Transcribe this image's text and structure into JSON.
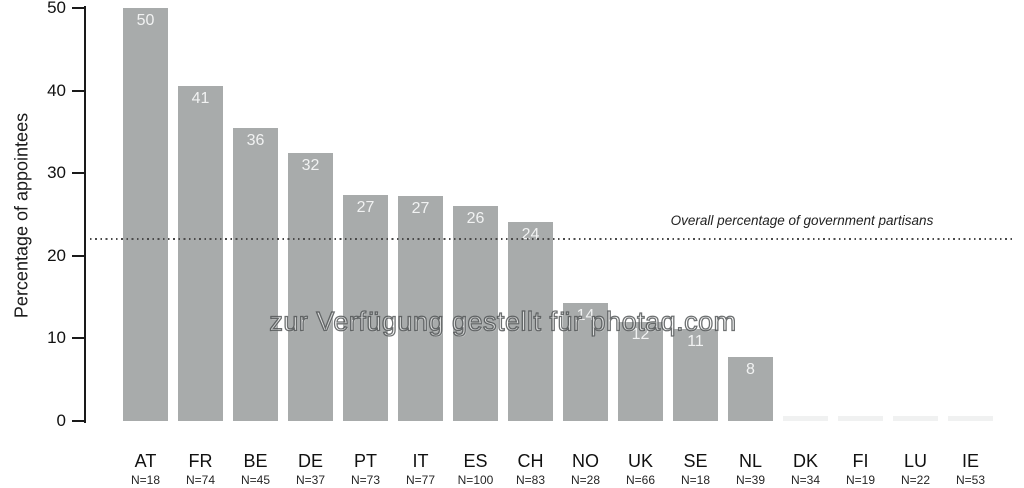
{
  "chart_data": {
    "type": "bar",
    "title": "",
    "xlabel": "",
    "ylabel": "Percentage of appointees",
    "ylim": [
      0,
      50
    ],
    "yticks": [
      0,
      10,
      20,
      30,
      40,
      50
    ],
    "grid": false,
    "legend_position": "none",
    "bar_color": "#a8abab",
    "categories": [
      "AT",
      "FR",
      "BE",
      "DE",
      "PT",
      "IT",
      "ES",
      "CH",
      "NO",
      "UK",
      "SE",
      "NL",
      "DK",
      "FI",
      "LU",
      "IE"
    ],
    "sample_sizes": [
      "N=18",
      "N=74",
      "N=45",
      "N=37",
      "N=73",
      "N=77",
      "N=100",
      "N=83",
      "N=28",
      "N=66",
      "N=18",
      "N=39",
      "N=34",
      "N=19",
      "N=22",
      "N=53"
    ],
    "values": [
      50,
      41,
      36,
      32,
      27,
      27,
      26,
      24,
      14,
      12,
      11,
      8,
      0,
      0,
      0,
      0
    ],
    "plotted_values": [
      50,
      40.5,
      35.5,
      32.4,
      27.4,
      27.3,
      26,
      24.1,
      14.3,
      12,
      11.1,
      7.7,
      0,
      0,
      0,
      0
    ],
    "bar_value_labels": [
      "50",
      "41",
      "36",
      "32",
      "27",
      "27",
      "26",
      "24",
      "14",
      "12",
      "11",
      "8",
      "",
      "",
      "",
      ""
    ],
    "reference_line": {
      "value": 22,
      "label": "Overall percentage of government partisans"
    },
    "watermark": "zur Verfügung gestellt für photaq.com"
  }
}
